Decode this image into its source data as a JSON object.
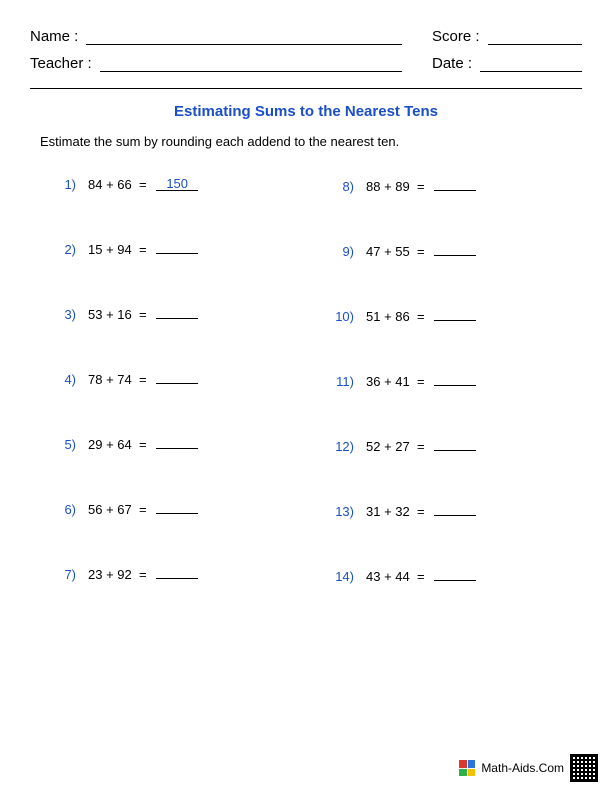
{
  "colors": {
    "accent_blue": "#1a4fc7",
    "text": "#000000",
    "background": "#ffffff"
  },
  "header": {
    "name_label": "Name :",
    "teacher_label": "Teacher :",
    "score_label": "Score :",
    "date_label": "Date :"
  },
  "title": "Estimating Sums to the Nearest Tens",
  "instructions": "Estimate the sum by rounding each addend to the nearest ten.",
  "problems_left": [
    {
      "num": "1)",
      "a": 84,
      "b": 66,
      "answer": "150"
    },
    {
      "num": "2)",
      "a": 15,
      "b": 94,
      "answer": ""
    },
    {
      "num": "3)",
      "a": 53,
      "b": 16,
      "answer": ""
    },
    {
      "num": "4)",
      "a": 78,
      "b": 74,
      "answer": ""
    },
    {
      "num": "5)",
      "a": 29,
      "b": 64,
      "answer": ""
    },
    {
      "num": "6)",
      "a": 56,
      "b": 67,
      "answer": ""
    },
    {
      "num": "7)",
      "a": 23,
      "b": 92,
      "answer": ""
    }
  ],
  "problems_right": [
    {
      "num": "8)",
      "a": 88,
      "b": 89,
      "answer": ""
    },
    {
      "num": "9)",
      "a": 47,
      "b": 55,
      "answer": ""
    },
    {
      "num": "10)",
      "a": 51,
      "b": 86,
      "answer": ""
    },
    {
      "num": "11)",
      "a": 36,
      "b": 41,
      "answer": ""
    },
    {
      "num": "12)",
      "a": 52,
      "b": 27,
      "answer": ""
    },
    {
      "num": "13)",
      "a": 31,
      "b": 32,
      "answer": ""
    },
    {
      "num": "14)",
      "a": 43,
      "b": 44,
      "answer": ""
    }
  ],
  "footer": {
    "site": "Math-Aids.Com"
  }
}
